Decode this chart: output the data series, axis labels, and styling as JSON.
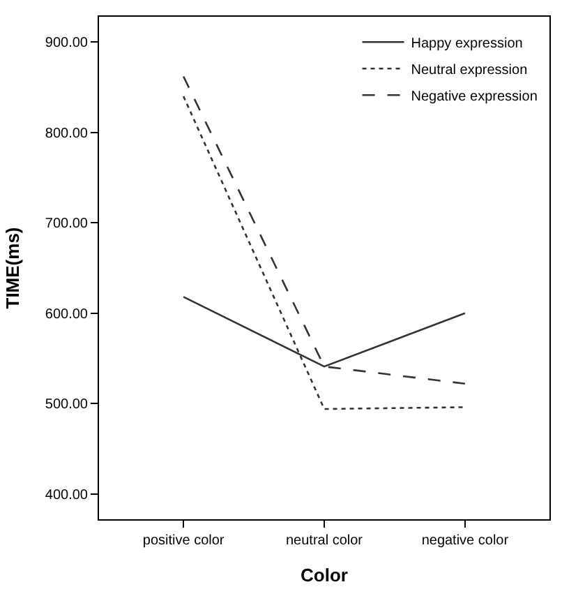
{
  "chart_data": {
    "type": "line",
    "xlabel": "Color",
    "ylabel": "TIME(ms)",
    "categories": [
      "positive color",
      "neutral color",
      "negative color"
    ],
    "series": [
      {
        "name": "Happy expression",
        "color": "#333333",
        "line_style": "solid",
        "values": [
          618,
          541,
          600
        ]
      },
      {
        "name": "Neutral expression",
        "color": "#333333",
        "line_style": "dotted",
        "values": [
          840,
          494,
          496
        ]
      },
      {
        "name": "Negative expression",
        "color": "#333333",
        "line_style": "dashed",
        "values": [
          862,
          541,
          522
        ]
      }
    ],
    "ylim": [
      372,
      928
    ],
    "yticks": [
      {
        "value": 400,
        "label": "400.00"
      },
      {
        "value": 500,
        "label": "500.00"
      },
      {
        "value": 600,
        "label": "600.00"
      },
      {
        "value": 700,
        "label": "700.00"
      },
      {
        "value": 800,
        "label": "800.00"
      },
      {
        "value": 900,
        "label": "900.00"
      }
    ],
    "legend": "top right",
    "marker": "none"
  }
}
